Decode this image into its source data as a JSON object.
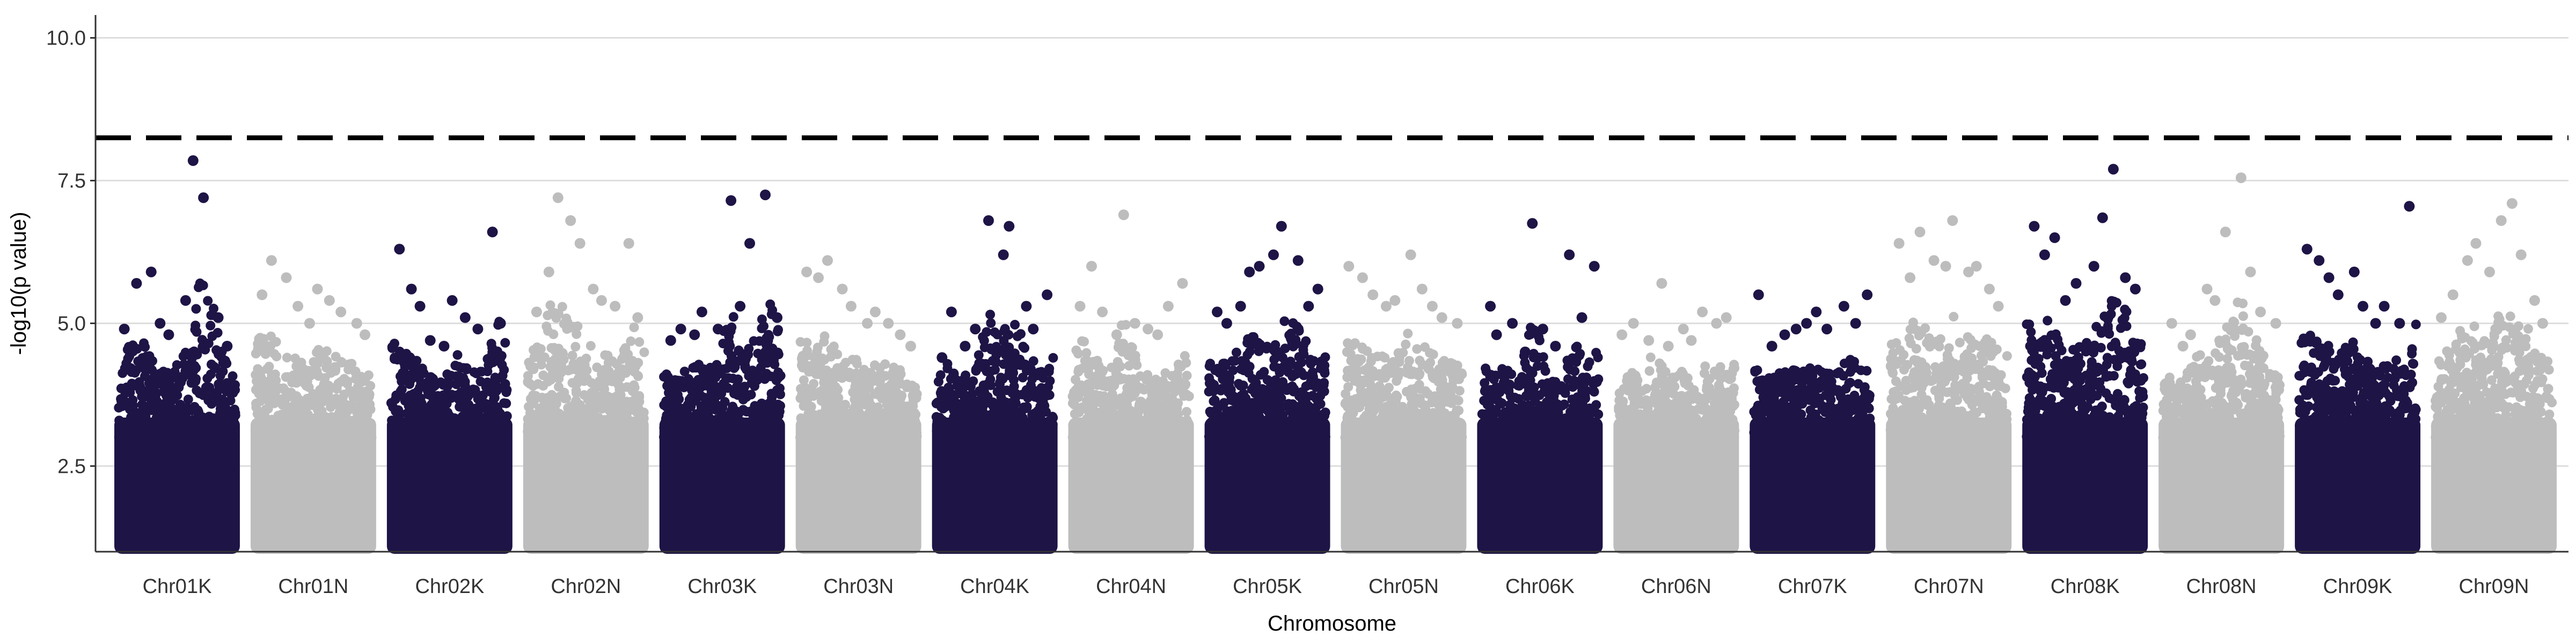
{
  "chart_data": {
    "type": "scatter",
    "title": "",
    "xlabel": "Chromosome",
    "ylabel": "-log10(p value)",
    "ylim": [
      1,
      10.4
    ],
    "y_ticks": [
      "2.5",
      "5.0",
      "7.5",
      "10.0"
    ],
    "grid": "horizontal major gridlines",
    "threshold": 8.25,
    "colors": {
      "dark": "#1e1446",
      "light": "#bdbdbd",
      "grid": "#dedede",
      "axis": "#333333",
      "threshold": "#000000"
    },
    "chromosomes": [
      {
        "name": "Chr01K",
        "color": "dark",
        "top": [
          4.9,
          5.7,
          5.9,
          5.0,
          4.8,
          5.4,
          7.85,
          7.2,
          5.1,
          4.6
        ]
      },
      {
        "name": "Chr01N",
        "color": "light",
        "top": [
          5.5,
          6.1,
          5.8,
          5.3,
          5.0,
          5.6,
          5.4,
          5.2,
          5.0,
          4.8
        ]
      },
      {
        "name": "Chr02K",
        "color": "dark",
        "top": [
          6.3,
          5.6,
          5.3,
          4.7,
          4.6,
          5.4,
          5.1,
          4.9,
          6.6,
          5.0
        ]
      },
      {
        "name": "Chr02N",
        "color": "light",
        "top": [
          5.2,
          5.9,
          7.2,
          6.8,
          6.4,
          5.6,
          5.4,
          5.3,
          6.4,
          5.1
        ]
      },
      {
        "name": "Chr03K",
        "color": "dark",
        "top": [
          4.7,
          4.9,
          4.8,
          5.2,
          4.9,
          7.15,
          5.3,
          6.4,
          7.25,
          5.1
        ]
      },
      {
        "name": "Chr03N",
        "color": "light",
        "top": [
          5.9,
          5.8,
          6.1,
          5.6,
          5.3,
          5.0,
          5.2,
          5.0,
          4.8,
          4.6
        ]
      },
      {
        "name": "Chr04K",
        "color": "dark",
        "top": [
          4.4,
          5.2,
          4.6,
          4.9,
          6.8,
          6.2,
          6.7,
          5.3,
          4.9,
          5.5
        ]
      },
      {
        "name": "Chr04N",
        "color": "light",
        "top": [
          5.3,
          6.0,
          5.2,
          4.8,
          6.9,
          5.0,
          4.9,
          4.8,
          5.3,
          5.7
        ]
      },
      {
        "name": "Chr05K",
        "color": "dark",
        "top": [
          5.2,
          5.0,
          5.3,
          5.9,
          6.0,
          6.2,
          6.7,
          6.1,
          5.3,
          5.6
        ]
      },
      {
        "name": "Chr05N",
        "color": "light",
        "top": [
          6.0,
          5.8,
          5.5,
          5.3,
          5.4,
          6.2,
          5.6,
          5.3,
          5.1,
          5.0
        ]
      },
      {
        "name": "Chr06K",
        "color": "dark",
        "top": [
          5.3,
          4.8,
          5.0,
          4.5,
          6.75,
          4.9,
          4.6,
          6.2,
          5.1,
          6.0
        ]
      },
      {
        "name": "Chr06N",
        "color": "light",
        "top": [
          4.8,
          5.0,
          4.7,
          5.7,
          4.6,
          4.9,
          4.7,
          5.2,
          5.0,
          5.1
        ]
      },
      {
        "name": "Chr07K",
        "color": "dark",
        "top": [
          5.5,
          4.6,
          4.8,
          4.9,
          5.0,
          5.2,
          4.9,
          5.3,
          5.0,
          5.5
        ]
      },
      {
        "name": "Chr07N",
        "color": "light",
        "top": [
          6.4,
          5.8,
          6.6,
          6.1,
          6.0,
          6.8,
          5.9,
          6.0,
          5.6,
          5.3
        ]
      },
      {
        "name": "Chr08K",
        "color": "dark",
        "top": [
          6.7,
          6.2,
          6.5,
          5.4,
          5.7,
          6.0,
          6.85,
          7.7,
          5.8,
          5.6
        ]
      },
      {
        "name": "Chr08N",
        "color": "light",
        "top": [
          5.0,
          4.6,
          4.8,
          5.6,
          5.4,
          6.6,
          7.55,
          5.9,
          5.2,
          5.0
        ]
      },
      {
        "name": "Chr09K",
        "color": "dark",
        "top": [
          6.3,
          6.1,
          5.8,
          5.5,
          5.9,
          5.3,
          5.0,
          5.3,
          5.0,
          7.05
        ]
      },
      {
        "name": "Chr09N",
        "color": "light",
        "top": [
          5.1,
          5.5,
          6.1,
          6.4,
          5.9,
          6.8,
          7.1,
          6.2,
          5.4,
          5.0
        ]
      }
    ]
  }
}
